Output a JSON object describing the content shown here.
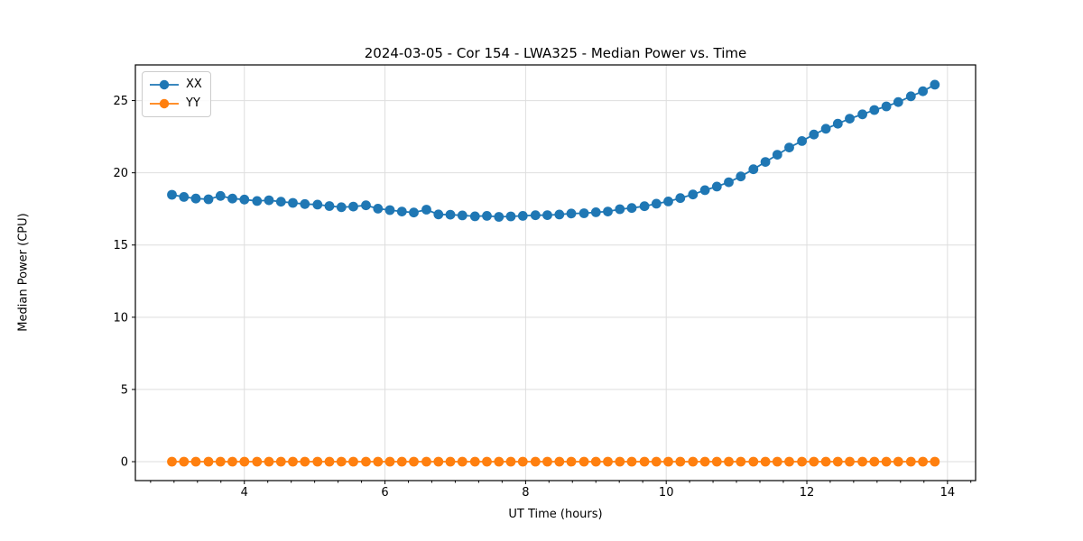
{
  "title": "2024-03-05 - Cor 154 - LWA325 - Median Power vs. Time",
  "colors": {
    "series_xx": "#1f77b4",
    "series_yy": "#ff7f0e",
    "grid": "#dedede",
    "spine": "#000000",
    "background": "#ffffff",
    "legend_border": "#cccccc"
  },
  "legend": {
    "items": [
      {
        "label": "XX",
        "color": "#1f77b4"
      },
      {
        "label": "YY",
        "color": "#ff7f0e"
      }
    ],
    "position": "upper left"
  },
  "chart_data": {
    "type": "line",
    "title": "2024-03-05 - Cor 154 - LWA325 - Median Power vs. Time",
    "xlabel": "UT Time (hours)",
    "ylabel": "Median Power (CPU)",
    "xlim": [
      2.45,
      14.4
    ],
    "ylim": [
      -1.31,
      27.47
    ],
    "x_ticks": [
      4,
      6,
      8,
      10,
      12,
      14
    ],
    "y_ticks": [
      0,
      5,
      10,
      15,
      20,
      25
    ],
    "x_minor_step": 0.3333,
    "grid": true,
    "legend_position": "upper left",
    "marker": "circle",
    "x": [
      2.97,
      3.14,
      3.31,
      3.49,
      3.66,
      3.83,
      4.0,
      4.18,
      4.35,
      4.52,
      4.69,
      4.86,
      5.04,
      5.21,
      5.38,
      5.55,
      5.73,
      5.9,
      6.07,
      6.24,
      6.41,
      6.59,
      6.76,
      6.93,
      7.1,
      7.28,
      7.45,
      7.62,
      7.79,
      7.96,
      8.14,
      8.31,
      8.48,
      8.65,
      8.83,
      9.0,
      9.17,
      9.34,
      9.51,
      9.69,
      9.86,
      10.03,
      10.2,
      10.38,
      10.55,
      10.72,
      10.89,
      11.06,
      11.24,
      11.41,
      11.58,
      11.75,
      11.93,
      12.1,
      12.27,
      12.44,
      12.61,
      12.79,
      12.96,
      13.13,
      13.3,
      13.48,
      13.65,
      13.82
    ],
    "series": [
      {
        "name": "XX",
        "color": "#1f77b4",
        "values": [
          18.48,
          18.33,
          18.22,
          18.17,
          18.4,
          18.22,
          18.15,
          18.05,
          18.1,
          18.0,
          17.92,
          17.84,
          17.8,
          17.7,
          17.62,
          17.66,
          17.75,
          17.52,
          17.42,
          17.32,
          17.25,
          17.45,
          17.12,
          17.1,
          17.05,
          16.99,
          17.02,
          16.95,
          16.98,
          17.02,
          17.06,
          17.07,
          17.11,
          17.18,
          17.2,
          17.27,
          17.32,
          17.48,
          17.56,
          17.69,
          17.86,
          18.02,
          18.25,
          18.5,
          18.8,
          19.05,
          19.35,
          19.75,
          20.25,
          20.75,
          21.25,
          21.75,
          22.2,
          22.65,
          23.05,
          23.4,
          23.75,
          24.05,
          24.35,
          24.6,
          24.9,
          25.3,
          25.65,
          26.1
        ]
      },
      {
        "name": "YY",
        "color": "#ff7f0e",
        "values": [
          0,
          0,
          0,
          0,
          0,
          0,
          0,
          0,
          0,
          0,
          0,
          0,
          0,
          0,
          0,
          0,
          0,
          0,
          0,
          0,
          0,
          0,
          0,
          0,
          0,
          0,
          0,
          0,
          0,
          0,
          0,
          0,
          0,
          0,
          0,
          0,
          0,
          0,
          0,
          0,
          0,
          0,
          0,
          0,
          0,
          0,
          0,
          0,
          0,
          0,
          0,
          0,
          0,
          0,
          0,
          0,
          0,
          0,
          0,
          0,
          0,
          0,
          0,
          0
        ]
      }
    ]
  }
}
